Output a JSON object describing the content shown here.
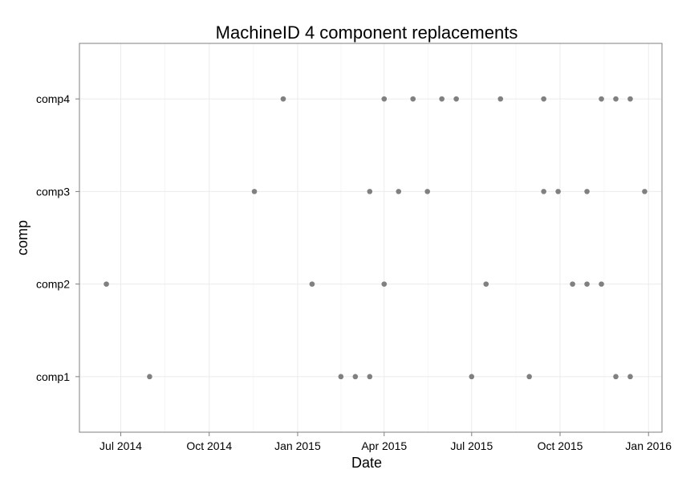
{
  "chart_data": {
    "type": "scatter",
    "title": "MachineID 4 component replacements",
    "xlabel": "Date",
    "ylabel": "comp",
    "x_type": "date",
    "xlim": [
      "2014-05-19",
      "2016-01-15"
    ],
    "x_ticks": [
      {
        "date": "2014-07-01",
        "label": "Jul 2014"
      },
      {
        "date": "2014-10-01",
        "label": "Oct 2014"
      },
      {
        "date": "2015-01-01",
        "label": "Jan 2015"
      },
      {
        "date": "2015-04-01",
        "label": "Apr 2015"
      },
      {
        "date": "2015-07-01",
        "label": "Jul 2015"
      },
      {
        "date": "2015-10-01",
        "label": "Oct 2015"
      },
      {
        "date": "2016-01-01",
        "label": "Jan 2016"
      }
    ],
    "categories": [
      "comp1",
      "comp2",
      "comp3",
      "comp4"
    ],
    "grid": true,
    "point_color": "#808080",
    "points": [
      {
        "comp": "comp1",
        "date": "2014-07-31"
      },
      {
        "comp": "comp1",
        "date": "2015-02-15"
      },
      {
        "comp": "comp1",
        "date": "2015-03-02"
      },
      {
        "comp": "comp1",
        "date": "2015-03-17"
      },
      {
        "comp": "comp1",
        "date": "2015-07-01"
      },
      {
        "comp": "comp1",
        "date": "2015-08-30"
      },
      {
        "comp": "comp1",
        "date": "2015-11-28"
      },
      {
        "comp": "comp1",
        "date": "2015-12-13"
      },
      {
        "comp": "comp2",
        "date": "2014-06-16"
      },
      {
        "comp": "comp2",
        "date": "2015-01-16"
      },
      {
        "comp": "comp2",
        "date": "2015-04-01"
      },
      {
        "comp": "comp2",
        "date": "2015-07-16"
      },
      {
        "comp": "comp2",
        "date": "2015-10-14"
      },
      {
        "comp": "comp2",
        "date": "2015-10-29"
      },
      {
        "comp": "comp2",
        "date": "2015-11-13"
      },
      {
        "comp": "comp3",
        "date": "2014-11-17"
      },
      {
        "comp": "comp3",
        "date": "2015-03-17"
      },
      {
        "comp": "comp3",
        "date": "2015-04-16"
      },
      {
        "comp": "comp3",
        "date": "2015-05-16"
      },
      {
        "comp": "comp3",
        "date": "2015-09-14"
      },
      {
        "comp": "comp3",
        "date": "2015-09-29"
      },
      {
        "comp": "comp3",
        "date": "2015-10-29"
      },
      {
        "comp": "comp3",
        "date": "2015-12-28"
      },
      {
        "comp": "comp4",
        "date": "2014-12-17"
      },
      {
        "comp": "comp4",
        "date": "2015-04-01"
      },
      {
        "comp": "comp4",
        "date": "2015-05-01"
      },
      {
        "comp": "comp4",
        "date": "2015-05-31"
      },
      {
        "comp": "comp4",
        "date": "2015-06-15"
      },
      {
        "comp": "comp4",
        "date": "2015-07-31"
      },
      {
        "comp": "comp4",
        "date": "2015-09-14"
      },
      {
        "comp": "comp4",
        "date": "2015-11-13"
      },
      {
        "comp": "comp4",
        "date": "2015-11-28"
      },
      {
        "comp": "comp4",
        "date": "2015-12-13"
      }
    ]
  }
}
